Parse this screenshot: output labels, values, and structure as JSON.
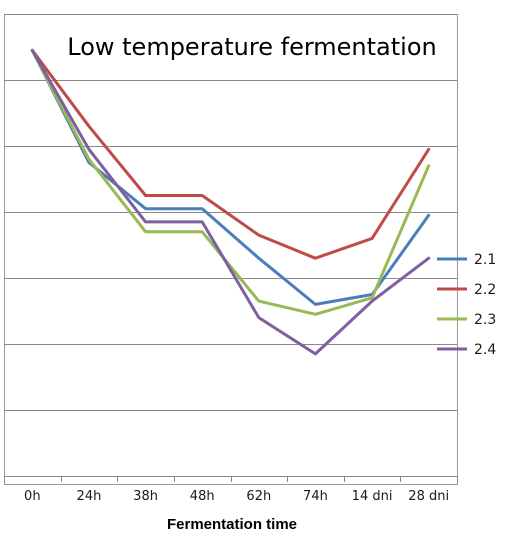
{
  "chart_data": {
    "type": "line",
    "title": "Low temperature fermentation",
    "xlabel": "Fermentation  time",
    "ylabel": "",
    "categories": [
      "0h",
      "24h",
      "38h",
      "48h",
      "62h",
      "74h",
      "14 dni",
      "28 dni"
    ],
    "ylim": [
      0,
      14
    ],
    "grid": true,
    "legend": "right",
    "series": [
      {
        "name": "2.1",
        "color": "#4A7EBB",
        "values": [
          12.9,
          9.5,
          8.1,
          8.1,
          6.6,
          5.2,
          5.5,
          7.9
        ]
      },
      {
        "name": "2.2",
        "color": "#BE4B48",
        "values": [
          12.9,
          10.6,
          8.5,
          8.5,
          7.3,
          6.6,
          7.2,
          9.9
        ]
      },
      {
        "name": "2.3",
        "color": "#98B954",
        "values": [
          12.9,
          9.6,
          7.4,
          7.4,
          5.3,
          4.9,
          5.4,
          9.4
        ]
      },
      {
        "name": "2.4",
        "color": "#7E5FA1",
        "values": [
          12.9,
          9.9,
          7.7,
          7.7,
          4.8,
          3.7,
          5.3,
          6.6
        ]
      }
    ]
  }
}
